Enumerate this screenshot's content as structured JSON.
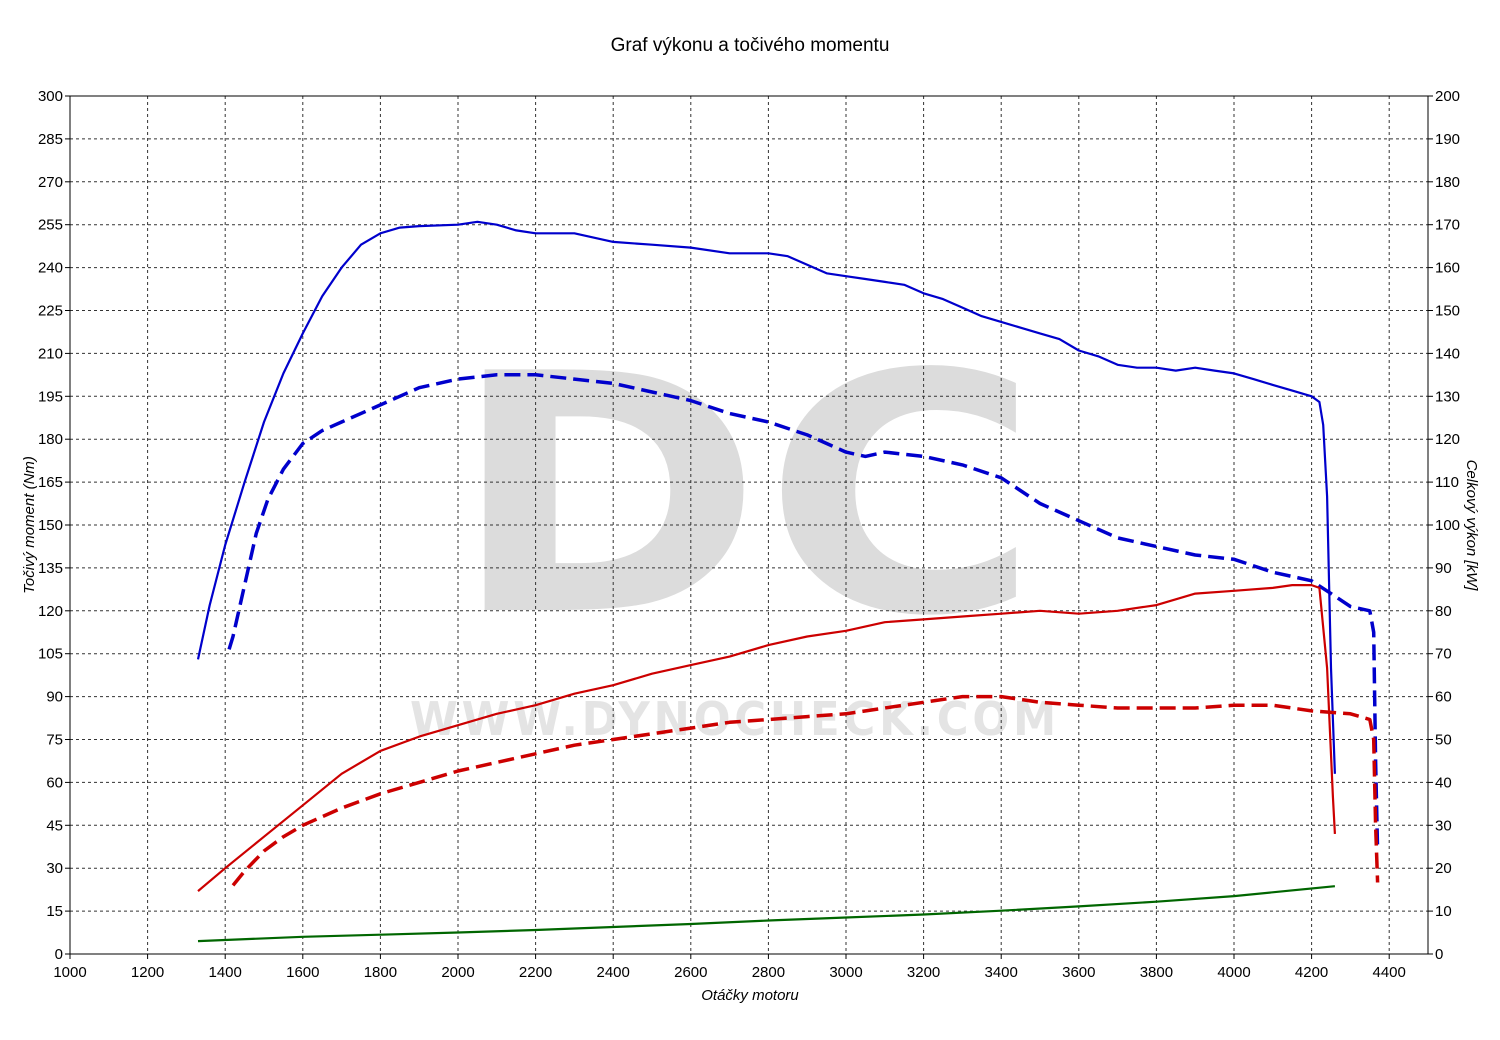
{
  "chart_data": {
    "type": "line",
    "title": "Graf výkonu a točivého momentu",
    "xlabel": "Otáčky motoru",
    "ylabel_left": "Točivý moment (Nm)",
    "ylabel_right": "Celkový výkon [kW]",
    "xlim": [
      1000,
      4500
    ],
    "ylim_left": [
      0,
      300
    ],
    "ylim_right": [
      0,
      200
    ],
    "x_ticks": [
      1000,
      1200,
      1400,
      1600,
      1800,
      2000,
      2200,
      2400,
      2600,
      2800,
      3000,
      3200,
      3400,
      3600,
      3800,
      4000,
      4200,
      4400
    ],
    "y_ticks_left": [
      0,
      15,
      30,
      45,
      60,
      75,
      90,
      105,
      120,
      135,
      150,
      165,
      180,
      195,
      210,
      225,
      240,
      255,
      270,
      285,
      300
    ],
    "y_ticks_right": [
      0,
      10,
      20,
      30,
      40,
      50,
      60,
      70,
      80,
      90,
      100,
      110,
      120,
      130,
      140,
      150,
      160,
      170,
      180,
      190,
      200
    ],
    "grid": true,
    "watermark": {
      "letters": "DC",
      "url": "WWW.DYNOCHECK.COM"
    },
    "series": [
      {
        "axis": "left",
        "color": "#0000cc",
        "dash": "solid",
        "points": [
          [
            1330,
            103
          ],
          [
            1360,
            122
          ],
          [
            1400,
            143
          ],
          [
            1450,
            165
          ],
          [
            1500,
            186
          ],
          [
            1550,
            203
          ],
          [
            1600,
            217
          ],
          [
            1650,
            230
          ],
          [
            1700,
            240
          ],
          [
            1750,
            248
          ],
          [
            1800,
            252
          ],
          [
            1850,
            254
          ],
          [
            1900,
            254.5
          ],
          [
            2000,
            255
          ],
          [
            2050,
            256
          ],
          [
            2100,
            255
          ],
          [
            2150,
            253
          ],
          [
            2200,
            252
          ],
          [
            2300,
            252
          ],
          [
            2400,
            249
          ],
          [
            2500,
            248
          ],
          [
            2600,
            247
          ],
          [
            2700,
            245
          ],
          [
            2800,
            245
          ],
          [
            2850,
            244
          ],
          [
            2900,
            241
          ],
          [
            2950,
            238
          ],
          [
            3000,
            237
          ],
          [
            3050,
            236
          ],
          [
            3100,
            235
          ],
          [
            3150,
            234
          ],
          [
            3200,
            231
          ],
          [
            3250,
            229
          ],
          [
            3300,
            226
          ],
          [
            3350,
            223
          ],
          [
            3400,
            221
          ],
          [
            3450,
            219
          ],
          [
            3500,
            217
          ],
          [
            3550,
            215
          ],
          [
            3600,
            211
          ],
          [
            3650,
            209
          ],
          [
            3700,
            206
          ],
          [
            3750,
            205
          ],
          [
            3800,
            205
          ],
          [
            3850,
            204
          ],
          [
            3900,
            205
          ],
          [
            3950,
            204
          ],
          [
            4000,
            203
          ],
          [
            4050,
            201
          ],
          [
            4100,
            199
          ],
          [
            4150,
            197
          ],
          [
            4200,
            195
          ],
          [
            4220,
            193
          ],
          [
            4230,
            185
          ],
          [
            4240,
            160
          ],
          [
            4250,
            100
          ],
          [
            4260,
            63
          ]
        ]
      },
      {
        "axis": "right",
        "color": "#0000cc",
        "dash": "dashed",
        "points": [
          [
            1410,
            71
          ],
          [
            1420,
            74
          ],
          [
            1450,
            86
          ],
          [
            1480,
            98
          ],
          [
            1510,
            106
          ],
          [
            1550,
            113
          ],
          [
            1600,
            119
          ],
          [
            1650,
            122
          ],
          [
            1700,
            124
          ],
          [
            1800,
            128
          ],
          [
            1900,
            132
          ],
          [
            2000,
            134
          ],
          [
            2100,
            135
          ],
          [
            2200,
            135
          ],
          [
            2300,
            134
          ],
          [
            2400,
            133
          ],
          [
            2500,
            131
          ],
          [
            2600,
            129
          ],
          [
            2700,
            126
          ],
          [
            2800,
            124
          ],
          [
            2900,
            121
          ],
          [
            3000,
            117
          ],
          [
            3050,
            116
          ],
          [
            3100,
            117
          ],
          [
            3200,
            116
          ],
          [
            3300,
            114
          ],
          [
            3400,
            111
          ],
          [
            3500,
            105
          ],
          [
            3600,
            101
          ],
          [
            3700,
            97
          ],
          [
            3800,
            95
          ],
          [
            3900,
            93
          ],
          [
            4000,
            92
          ],
          [
            4100,
            89
          ],
          [
            4200,
            87
          ],
          [
            4250,
            84
          ],
          [
            4300,
            81
          ],
          [
            4350,
            80
          ],
          [
            4360,
            75
          ],
          [
            4365,
            45
          ],
          [
            4370,
            24
          ]
        ]
      },
      {
        "axis": "left",
        "color": "#cc0000",
        "dash": "solid",
        "points": [
          [
            1330,
            22
          ],
          [
            1400,
            30
          ],
          [
            1500,
            41
          ],
          [
            1600,
            52
          ],
          [
            1700,
            63
          ],
          [
            1800,
            71
          ],
          [
            1900,
            76
          ],
          [
            2000,
            80
          ],
          [
            2100,
            84
          ],
          [
            2200,
            87
          ],
          [
            2300,
            91
          ],
          [
            2400,
            94
          ],
          [
            2500,
            98
          ],
          [
            2600,
            101
          ],
          [
            2700,
            104
          ],
          [
            2800,
            108
          ],
          [
            2900,
            111
          ],
          [
            3000,
            113
          ],
          [
            3100,
            116
          ],
          [
            3200,
            117
          ],
          [
            3300,
            118
          ],
          [
            3400,
            119
          ],
          [
            3500,
            120
          ],
          [
            3600,
            119
          ],
          [
            3700,
            120
          ],
          [
            3800,
            122
          ],
          [
            3900,
            126
          ],
          [
            4000,
            127
          ],
          [
            4100,
            128
          ],
          [
            4150,
            129
          ],
          [
            4200,
            129
          ],
          [
            4220,
            128
          ],
          [
            4240,
            100
          ],
          [
            4255,
            55
          ],
          [
            4260,
            42
          ]
        ]
      },
      {
        "axis": "left",
        "color": "#cc0000",
        "dash": "dashed",
        "points": [
          [
            1420,
            24
          ],
          [
            1450,
            29
          ],
          [
            1500,
            36
          ],
          [
            1550,
            41
          ],
          [
            1600,
            45
          ],
          [
            1700,
            51
          ],
          [
            1800,
            56
          ],
          [
            1900,
            60
          ],
          [
            2000,
            64
          ],
          [
            2100,
            67
          ],
          [
            2200,
            70
          ],
          [
            2300,
            73
          ],
          [
            2400,
            75
          ],
          [
            2500,
            77
          ],
          [
            2600,
            79
          ],
          [
            2700,
            81
          ],
          [
            2800,
            82
          ],
          [
            2900,
            83
          ],
          [
            3000,
            84
          ],
          [
            3100,
            86
          ],
          [
            3200,
            88
          ],
          [
            3300,
            90
          ],
          [
            3400,
            90
          ],
          [
            3500,
            88
          ],
          [
            3600,
            87
          ],
          [
            3700,
            86
          ],
          [
            3800,
            86
          ],
          [
            3900,
            86
          ],
          [
            4000,
            87
          ],
          [
            4100,
            87
          ],
          [
            4200,
            85
          ],
          [
            4300,
            84
          ],
          [
            4350,
            82
          ],
          [
            4360,
            75
          ],
          [
            4365,
            45
          ],
          [
            4370,
            25
          ]
        ]
      },
      {
        "axis": "right",
        "color": "#006600",
        "dash": "solid",
        "points": [
          [
            1330,
            3
          ],
          [
            1600,
            4
          ],
          [
            1800,
            4.5
          ],
          [
            2000,
            5
          ],
          [
            2200,
            5.6
          ],
          [
            2400,
            6.3
          ],
          [
            2600,
            7
          ],
          [
            2800,
            7.8
          ],
          [
            3000,
            8.5
          ],
          [
            3200,
            9.2
          ],
          [
            3400,
            10.1
          ],
          [
            3600,
            11.1
          ],
          [
            3800,
            12.2
          ],
          [
            4000,
            13.5
          ],
          [
            4260,
            15.8
          ]
        ]
      }
    ]
  }
}
